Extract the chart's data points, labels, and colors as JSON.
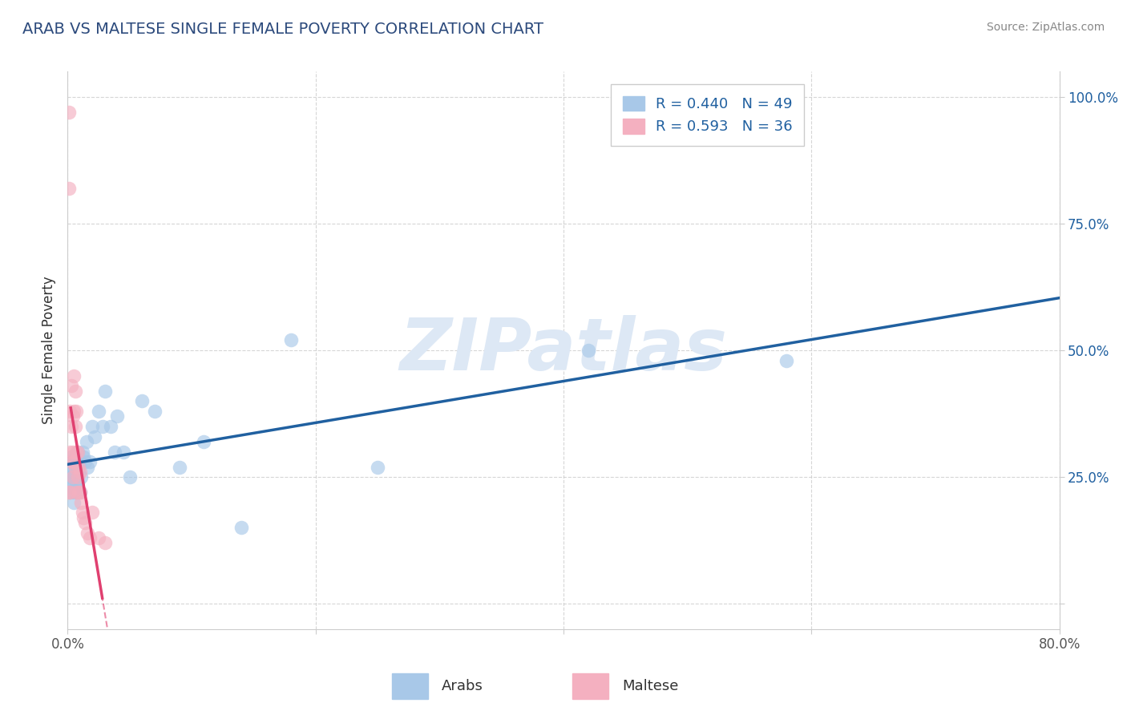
{
  "title": "ARAB VS MALTESE SINGLE FEMALE POVERTY CORRELATION CHART",
  "source": "Source: ZipAtlas.com",
  "ylabel": "Single Female Poverty",
  "xlim": [
    0.0,
    0.8
  ],
  "ylim": [
    -0.05,
    1.05
  ],
  "arab_color": "#a8c8e8",
  "maltese_color": "#f4b0c0",
  "arab_line_color": "#2060a0",
  "maltese_line_color": "#e04070",
  "arab_R": 0.44,
  "arab_N": 49,
  "maltese_R": 0.593,
  "maltese_N": 36,
  "background_color": "#ffffff",
  "grid_color": "#cccccc",
  "watermark": "ZIPatlas",
  "watermark_color": "#dde8f5",
  "title_color": "#2c4a7c",
  "source_color": "#888888",
  "legend_label_arab": "Arabs",
  "legend_label_maltese": "Maltese",
  "arab_scatter_x": [
    0.001,
    0.002,
    0.002,
    0.003,
    0.003,
    0.003,
    0.004,
    0.004,
    0.004,
    0.005,
    0.005,
    0.005,
    0.006,
    0.006,
    0.006,
    0.007,
    0.007,
    0.008,
    0.008,
    0.008,
    0.009,
    0.01,
    0.01,
    0.011,
    0.012,
    0.013,
    0.014,
    0.015,
    0.016,
    0.018,
    0.02,
    0.022,
    0.025,
    0.028,
    0.03,
    0.035,
    0.038,
    0.04,
    0.045,
    0.05,
    0.06,
    0.07,
    0.09,
    0.11,
    0.14,
    0.18,
    0.25,
    0.42,
    0.58
  ],
  "arab_scatter_y": [
    0.28,
    0.25,
    0.22,
    0.23,
    0.26,
    0.29,
    0.22,
    0.25,
    0.28,
    0.2,
    0.24,
    0.27,
    0.23,
    0.26,
    0.29,
    0.22,
    0.25,
    0.24,
    0.27,
    0.3,
    0.26,
    0.28,
    0.22,
    0.25,
    0.3,
    0.29,
    0.28,
    0.32,
    0.27,
    0.28,
    0.35,
    0.33,
    0.38,
    0.35,
    0.42,
    0.35,
    0.3,
    0.37,
    0.3,
    0.25,
    0.4,
    0.38,
    0.27,
    0.32,
    0.15,
    0.52,
    0.27,
    0.5,
    0.48
  ],
  "maltese_scatter_x": [
    0.001,
    0.001,
    0.001,
    0.002,
    0.002,
    0.002,
    0.003,
    0.003,
    0.003,
    0.004,
    0.004,
    0.004,
    0.005,
    0.005,
    0.005,
    0.006,
    0.006,
    0.006,
    0.007,
    0.007,
    0.007,
    0.008,
    0.008,
    0.009,
    0.009,
    0.01,
    0.01,
    0.011,
    0.012,
    0.013,
    0.014,
    0.016,
    0.018,
    0.02,
    0.025,
    0.03
  ],
  "maltese_scatter_y": [
    0.97,
    0.82,
    0.22,
    0.38,
    0.3,
    0.22,
    0.43,
    0.35,
    0.28,
    0.37,
    0.3,
    0.25,
    0.45,
    0.38,
    0.28,
    0.42,
    0.35,
    0.27,
    0.38,
    0.3,
    0.22,
    0.3,
    0.25,
    0.27,
    0.22,
    0.26,
    0.22,
    0.2,
    0.18,
    0.17,
    0.16,
    0.14,
    0.13,
    0.18,
    0.13,
    0.12
  ]
}
